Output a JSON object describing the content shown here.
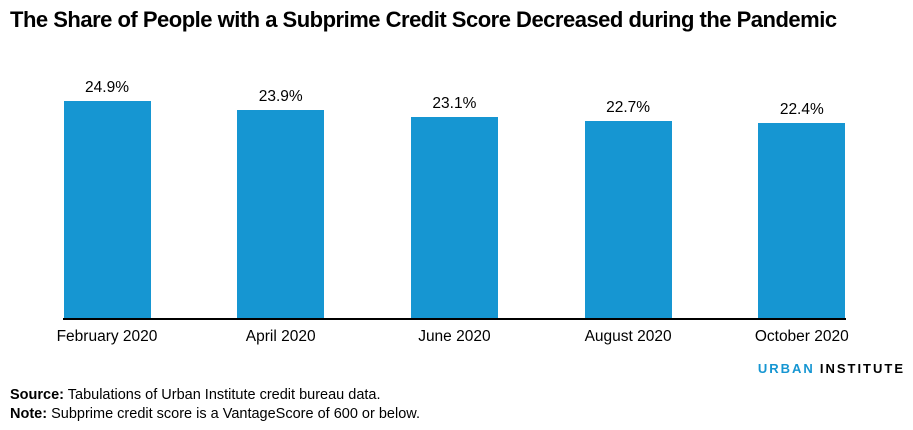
{
  "title": "The Share of People with a Subprime Credit Score Decreased during the Pandemic",
  "chart_data": {
    "type": "bar",
    "title": "The Share of People with a Subprime Credit Score Decreased during the Pandemic",
    "categories": [
      "February 2020",
      "April 2020",
      "June 2020",
      "August 2020",
      "October 2020"
    ],
    "values": [
      24.9,
      23.9,
      23.1,
      22.7,
      22.4
    ],
    "value_labels": [
      "24.9%",
      "23.9%",
      "23.1%",
      "22.7%",
      "22.4%"
    ],
    "xlabel": "",
    "ylabel": "",
    "ylim": [
      0,
      26
    ],
    "grid": false,
    "legend": "none",
    "bar_color": "#1696D2",
    "axis_color": "#000000",
    "label_color": "#000000"
  },
  "footer": {
    "source_label": "Source:",
    "source_text": " Tabulations of Urban Institute credit bureau data.",
    "note_label": "Note:",
    "note_text": " Subprime credit score is a VantageScore of 600 or below."
  },
  "logo": {
    "urban": "URBAN",
    "institute": "INSTITUTE",
    "urban_color": "#1696D2",
    "institute_color": "#000000"
  }
}
